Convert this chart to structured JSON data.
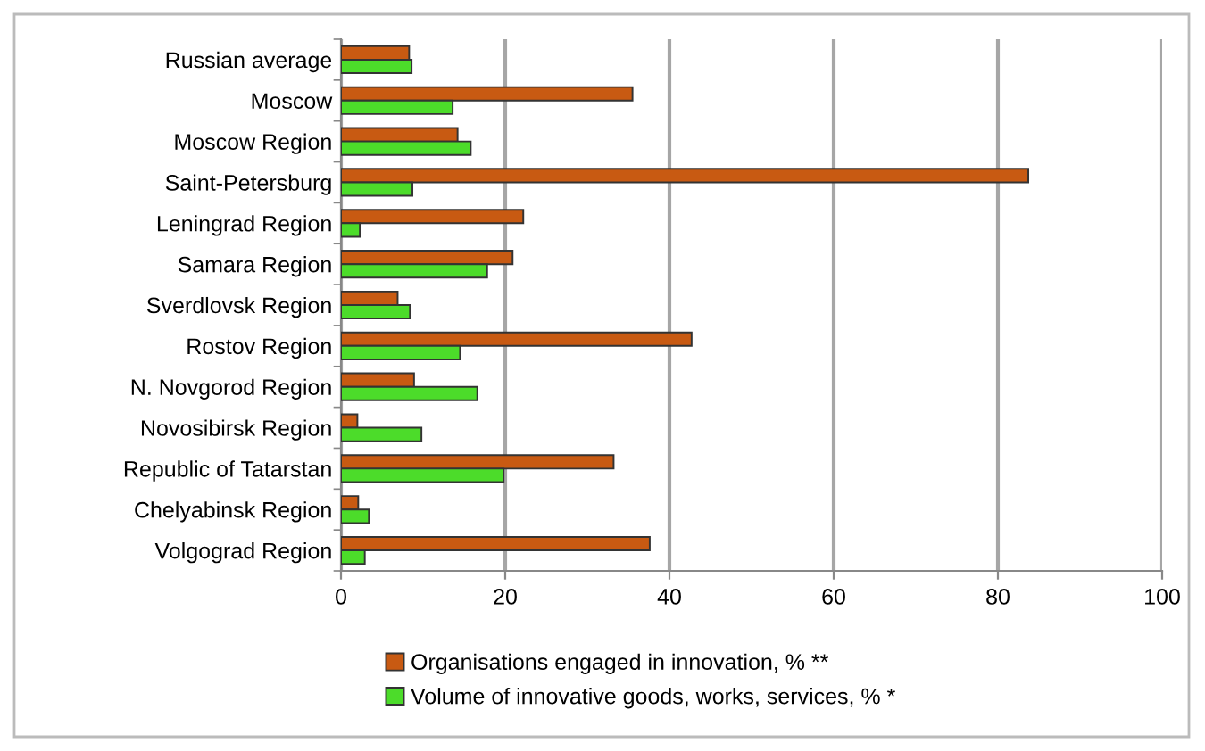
{
  "chart_data": {
    "type": "bar",
    "orientation": "horizontal",
    "categories": [
      "Russian average",
      "Moscow",
      "Moscow Region",
      "Saint-Petersburg",
      "Leningrad Region",
      "Samara Region",
      "Sverdlovsk Region",
      "Rostov Region",
      "N. Novgorod Region",
      "Novosibirsk Region",
      "Republic of Tatarstan",
      "Chelyabinsk Region",
      "Volgograd Region"
    ],
    "series": [
      {
        "name": "Organisations engaged in innovation, % **",
        "color": "#c85a12",
        "values": [
          8.3,
          35.5,
          14.2,
          83.7,
          22.2,
          20.9,
          6.9,
          42.7,
          8.9,
          2.0,
          33.2,
          2.1,
          37.6
        ]
      },
      {
        "name": "Volume of innovative goods, works, services, % *",
        "color": "#4cdc2a",
        "values": [
          8.6,
          13.6,
          15.8,
          8.7,
          2.3,
          17.8,
          8.4,
          14.5,
          16.6,
          9.8,
          19.8,
          3.4,
          2.9
        ]
      }
    ],
    "xlim": [
      0,
      100
    ],
    "xticks": [
      0,
      20,
      40,
      60,
      80,
      100
    ],
    "grid": "x",
    "legend": "bottom"
  }
}
